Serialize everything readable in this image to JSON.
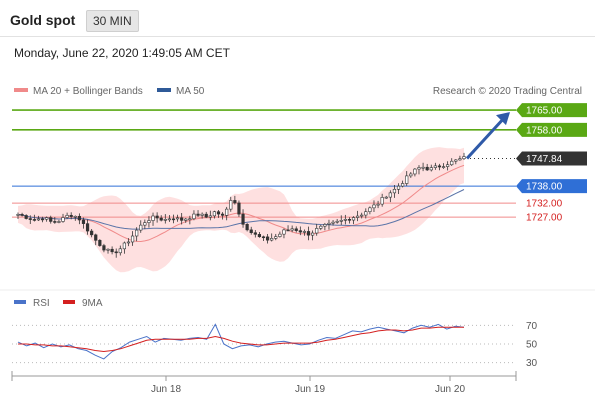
{
  "header": {
    "title": "Gold spot",
    "interval": "30 MIN"
  },
  "timestamp": "Monday, June 22, 2020 1:49:05 AM CET",
  "legend": {
    "ma20": "MA 20 + Bollinger Bands",
    "ma50": "MA 50",
    "credit": "Research © 2020 Trading Central",
    "rsi": "RSI",
    "ma9": "9MA"
  },
  "colors": {
    "resistance": "#5aa814",
    "support": "#2f6fd6",
    "pivot_lines": "#f08a8a",
    "candle": "#333333",
    "bollinger": "#fdd6d6",
    "ma20": "#f08a8a",
    "ma50": "#5b74a8",
    "rsi": "#4a73c9",
    "ma9": "#d42020",
    "current": "#333333",
    "arrow": "#2f5aa8"
  },
  "chart_data": {
    "type": "candlestick",
    "symbol": "Gold spot",
    "ylim": [
      1704,
      1770
    ],
    "x_ticks": [
      "Jun 18",
      "Jun 19",
      "Jun 20"
    ],
    "levels": [
      {
        "label": "1765.00",
        "value": 1765.0,
        "kind": "resistance"
      },
      {
        "label": "1758.00",
        "value": 1758.0,
        "kind": "resistance"
      },
      {
        "label": "1747.84",
        "value": 1747.84,
        "kind": "current"
      },
      {
        "label": "1738.00",
        "value": 1738.0,
        "kind": "pivot"
      },
      {
        "label": "1732.00",
        "value": 1732.0,
        "kind": "support"
      },
      {
        "label": "1727.00",
        "value": 1727.0,
        "kind": "support"
      }
    ],
    "price_path": [
      1728,
      1727,
      1726,
      1727,
      1725,
      1726,
      1728,
      1727,
      1723,
      1719,
      1716,
      1714,
      1716,
      1719,
      1723,
      1726,
      1727,
      1726,
      1727,
      1726,
      1727,
      1728,
      1727,
      1729,
      1727,
      1735,
      1726,
      1722,
      1720,
      1719,
      1720,
      1722,
      1723,
      1722,
      1721,
      1723,
      1724,
      1725,
      1726,
      1727,
      1728,
      1730,
      1732,
      1735,
      1737,
      1740,
      1743,
      1745,
      1744,
      1745,
      1746,
      1747,
      1748
    ],
    "forecast": {
      "from": 1747.84,
      "to": 1765.0
    },
    "rsi": {
      "levels": [
        "70",
        "50",
        "30"
      ],
      "ylim": [
        20,
        80
      ],
      "values": [
        52,
        48,
        51,
        46,
        50,
        47,
        49,
        45,
        43,
        38,
        34,
        42,
        46,
        52,
        55,
        58,
        52,
        56,
        55,
        54,
        56,
        57,
        55,
        71,
        50,
        45,
        48,
        49,
        47,
        50,
        52,
        53,
        51,
        49,
        50,
        54,
        57,
        56,
        60,
        64,
        63,
        66,
        68,
        66,
        64,
        62,
        67,
        70,
        68,
        71,
        66,
        69,
        68
      ],
      "ma9": [
        50,
        50,
        49,
        49,
        48,
        48,
        47,
        46,
        45,
        43,
        42,
        43,
        45,
        48,
        51,
        54,
        55,
        55,
        55,
        55,
        55,
        56,
        56,
        58,
        56,
        53,
        51,
        50,
        49,
        49,
        50,
        51,
        51,
        51,
        51,
        52,
        54,
        55,
        57,
        59,
        61,
        62,
        64,
        65,
        65,
        64,
        65,
        67,
        67,
        68,
        68,
        68,
        68
      ]
    }
  }
}
